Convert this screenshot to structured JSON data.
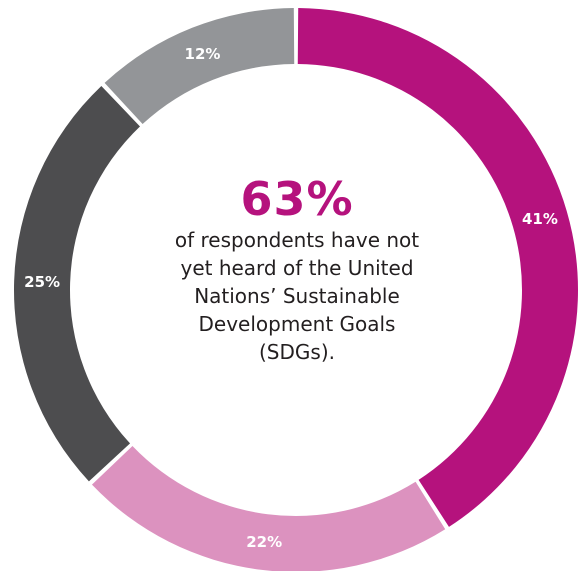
{
  "chart_data": {
    "type": "pie",
    "categories": [
      "",
      "",
      "",
      ""
    ],
    "values": [
      41,
      22,
      25,
      12
    ],
    "value_labels": [
      "41%",
      "22%",
      "25%",
      "12%"
    ],
    "colors": [
      "#b5127d",
      "#dc92bf",
      "#4d4d4f",
      "#939598"
    ],
    "donut": true,
    "title": "63%",
    "annotation_lines": [
      "of respondents have not",
      "yet heard of the United",
      "Nations’ Sustainable",
      "Development Goals",
      "(SDGs)."
    ],
    "headline_color": "#b5127d"
  }
}
